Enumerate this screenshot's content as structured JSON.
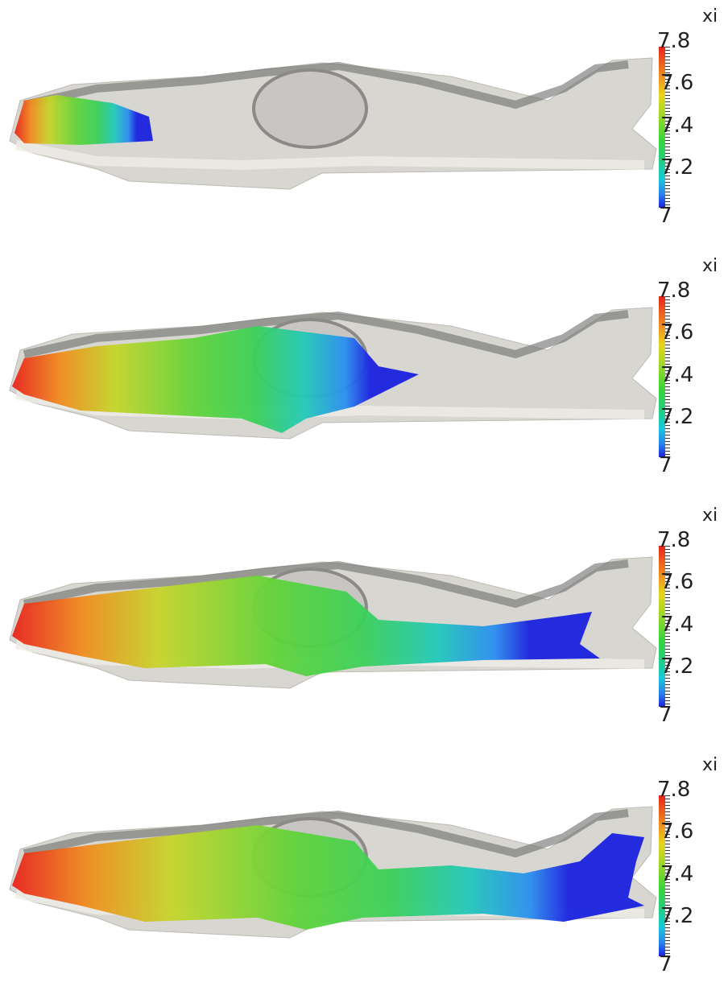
{
  "colorbar": {
    "title": "xi",
    "labels": [
      "7.8",
      "7.6",
      "7.4",
      "7.2",
      "7"
    ],
    "range": [
      7,
      7.8
    ],
    "colors": [
      "#e8231c",
      "#f08c1e",
      "#e7d51d",
      "#39d43a",
      "#18c9d8",
      "#1a22e0"
    ]
  },
  "panels": [
    {
      "stage": 1,
      "flood_extent": "left end only"
    },
    {
      "stage": 2,
      "flood_extent": "up to central oval"
    },
    {
      "stage": 3,
      "flood_extent": "past oval to right channel"
    },
    {
      "stage": 4,
      "flood_extent": "full domain to right inlet"
    }
  ]
}
